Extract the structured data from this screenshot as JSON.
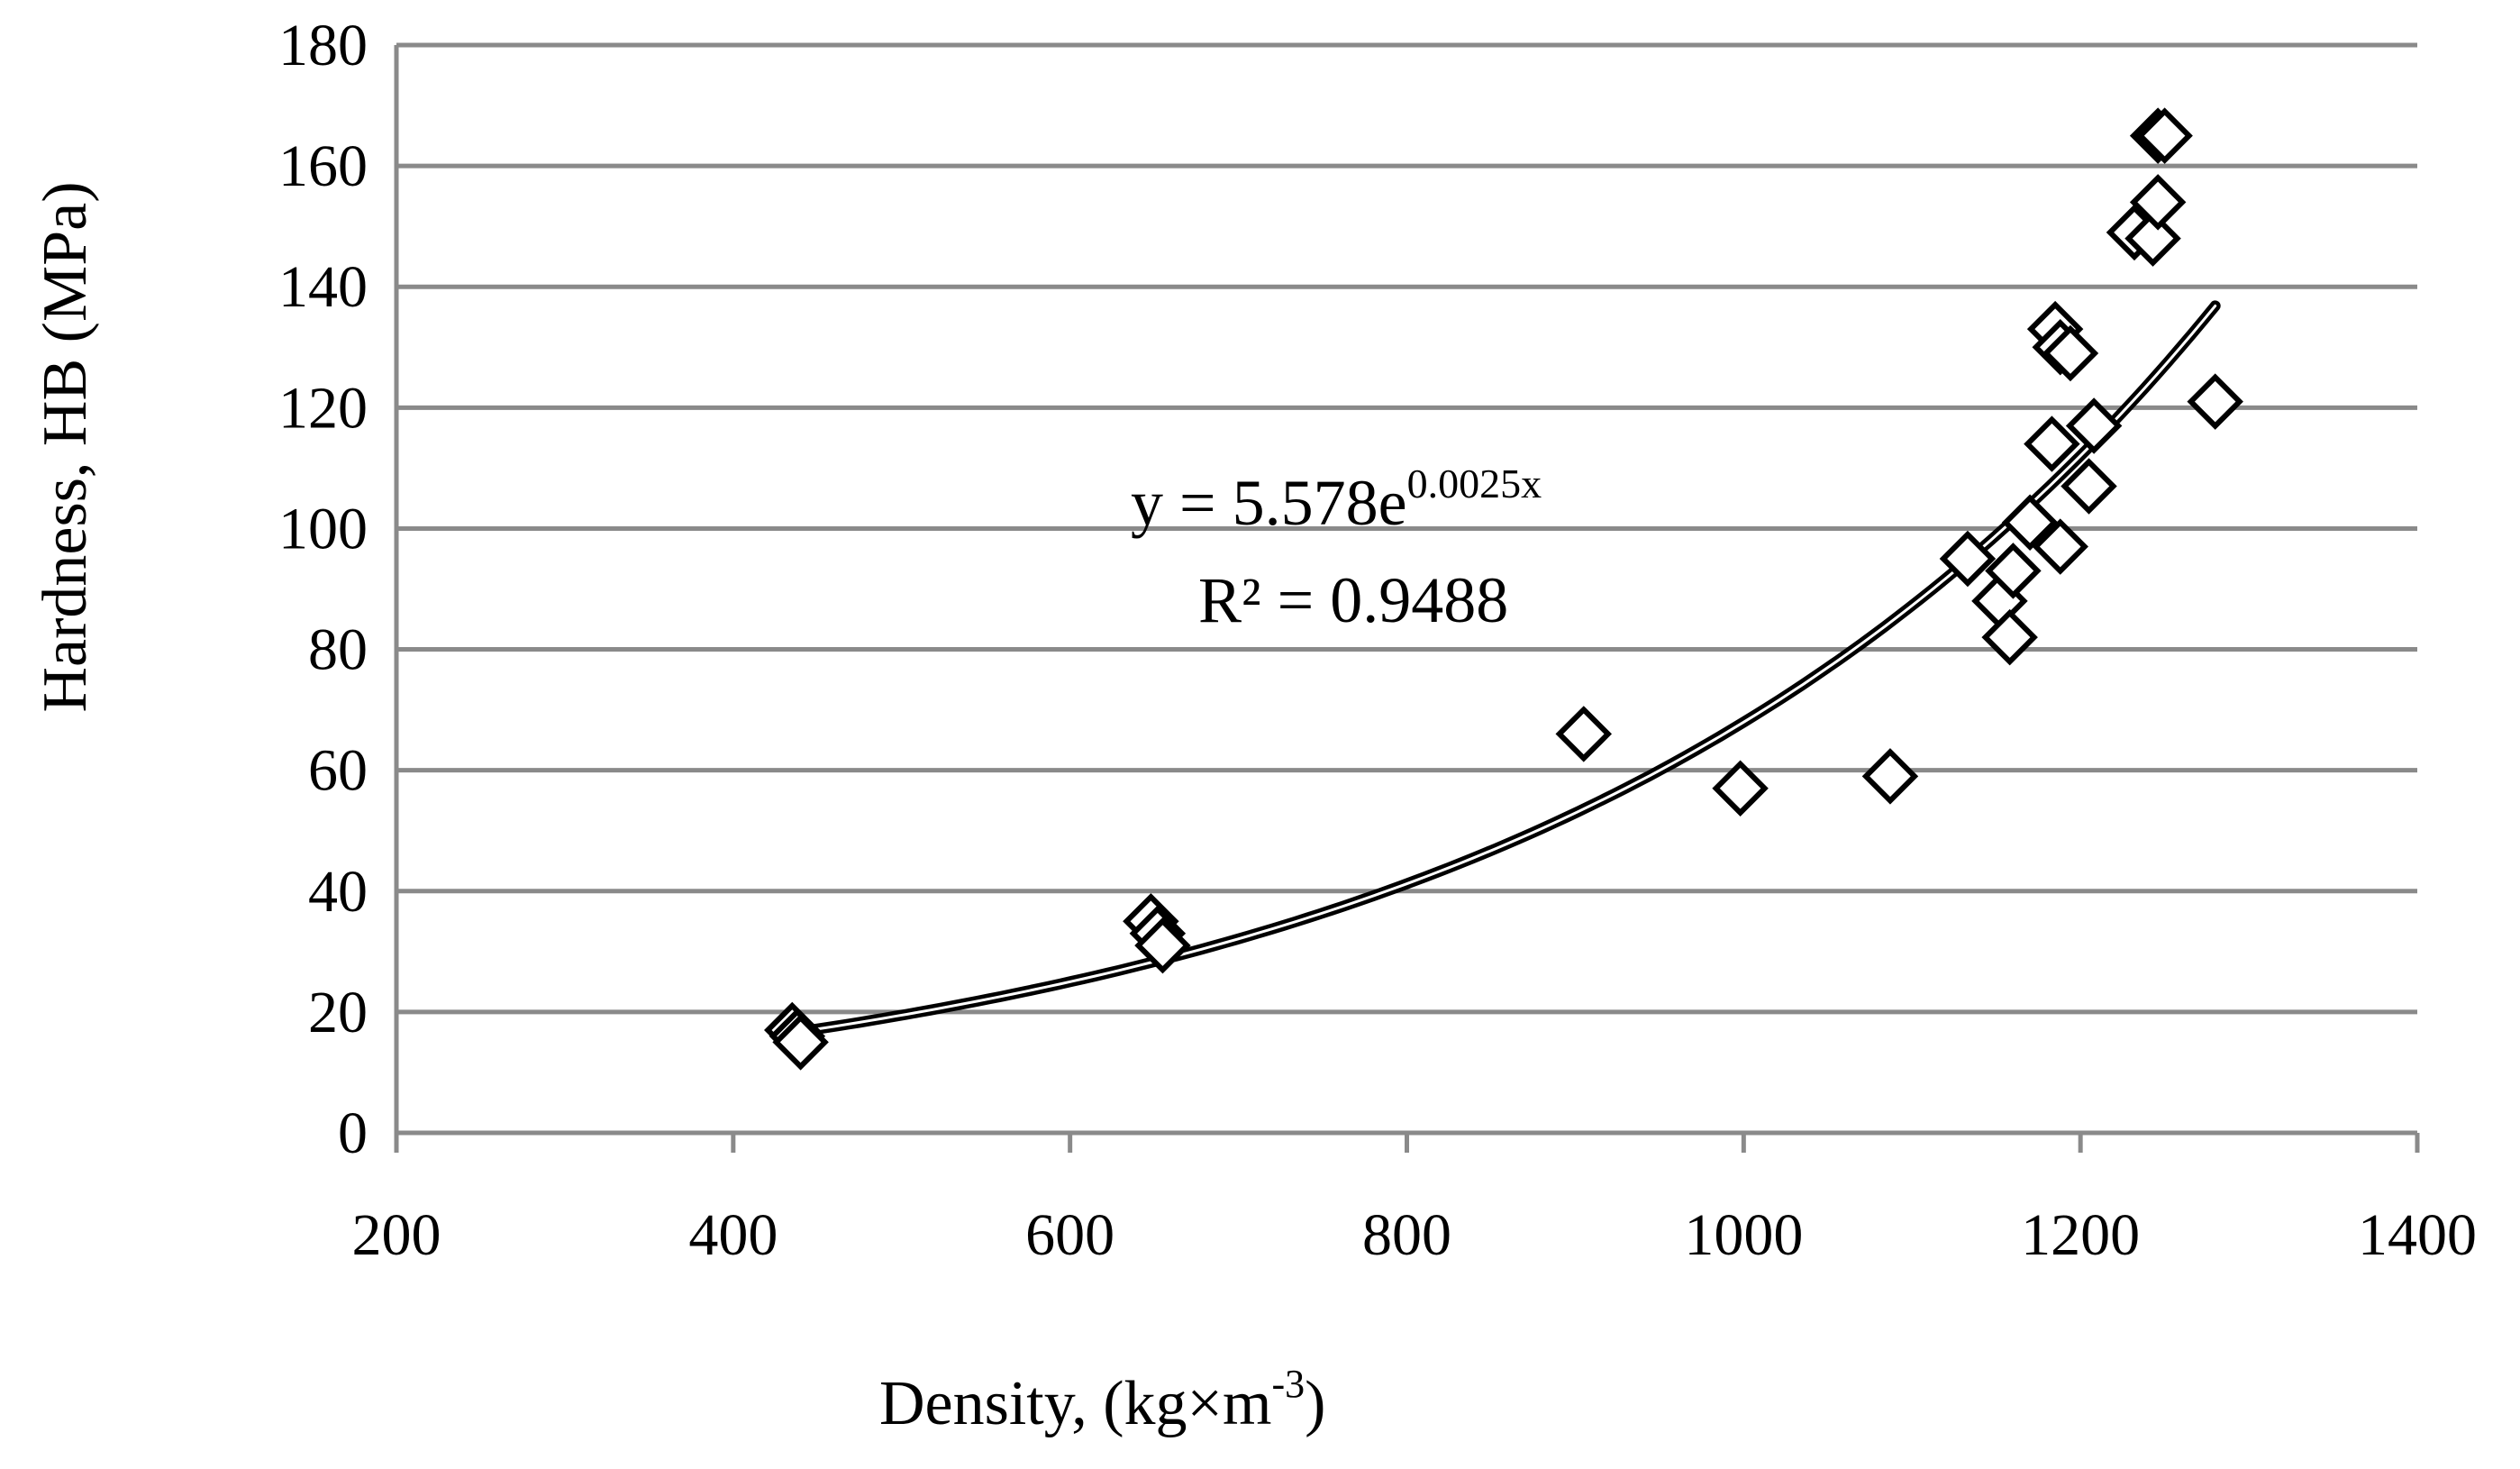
{
  "chart_data": {
    "type": "scatter",
    "title": "",
    "xlabel_main": "Density, (kg×m",
    "xlabel_sup": "-3",
    "xlabel_close": ")",
    "ylabel": "Hardness, HB (MPa)",
    "xlim": [
      200,
      1400
    ],
    "ylim": [
      0,
      180
    ],
    "x_ticks": [
      200,
      400,
      600,
      800,
      1000,
      1200,
      1400
    ],
    "y_ticks": [
      0,
      20,
      40,
      60,
      80,
      100,
      120,
      140,
      160,
      180
    ],
    "x_tick_labels": [
      "200",
      "400",
      "600",
      "800",
      "1000",
      "1200",
      "1400"
    ],
    "y_tick_labels": [
      "0",
      "20",
      "40",
      "60",
      "80",
      "100",
      "120",
      "140",
      "160",
      "180"
    ],
    "grid": true,
    "series": [
      {
        "name": "Hardness",
        "marker": "diamond-open",
        "points": [
          {
            "x": 435,
            "y": 17
          },
          {
            "x": 438,
            "y": 16
          },
          {
            "x": 440,
            "y": 15
          },
          {
            "x": 648,
            "y": 35
          },
          {
            "x": 652,
            "y": 33
          },
          {
            "x": 655,
            "y": 31
          },
          {
            "x": 905,
            "y": 66
          },
          {
            "x": 998,
            "y": 57
          },
          {
            "x": 1087,
            "y": 59
          },
          {
            "x": 1133,
            "y": 95
          },
          {
            "x": 1152,
            "y": 88
          },
          {
            "x": 1158,
            "y": 82
          },
          {
            "x": 1160,
            "y": 93
          },
          {
            "x": 1170,
            "y": 101
          },
          {
            "x": 1183,
            "y": 114
          },
          {
            "x": 1188,
            "y": 97
          },
          {
            "x": 1185,
            "y": 133
          },
          {
            "x": 1188,
            "y": 130
          },
          {
            "x": 1194,
            "y": 129
          },
          {
            "x": 1205,
            "y": 107
          },
          {
            "x": 1208,
            "y": 117
          },
          {
            "x": 1232,
            "y": 149
          },
          {
            "x": 1243,
            "y": 148
          },
          {
            "x": 1246,
            "y": 154
          },
          {
            "x": 1246,
            "y": 165
          },
          {
            "x": 1250,
            "y": 165
          },
          {
            "x": 1280,
            "y": 121
          }
        ]
      }
    ],
    "trendline": {
      "type": "exponential",
      "a": 5.578,
      "b": 0.0025,
      "x_range": [
        440,
        1280
      ]
    },
    "equation": {
      "prefix": "y = 5.578e",
      "exponent": "0.0025x",
      "r_squared": "R² = 0.9488"
    }
  }
}
